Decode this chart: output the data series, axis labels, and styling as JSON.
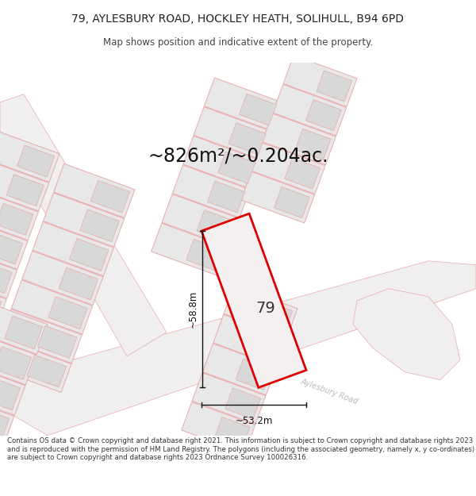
{
  "title_line1": "79, AYLESBURY ROAD, HOCKLEY HEATH, SOLIHULL, B94 6PD",
  "title_line2": "Map shows position and indicative extent of the property.",
  "area_text": "~826m²/~0.204ac.",
  "label_79": "79",
  "dim_width": "~53.2m",
  "dim_height": "~58.8m",
  "footer": "Contains OS data © Crown copyright and database right 2021. This information is subject to Crown copyright and database rights 2023 and is reproduced with the permission of HM Land Registry. The polygons (including the associated geometry, namely x, y co-ordinates) are subject to Crown copyright and database rights 2023 Ordnance Survey 100026316.",
  "bg_color": "#ffffff",
  "map_bg": "#fafafa",
  "property_color": "#dd0000",
  "property_fill": "#f5f0f0",
  "plot_fill": "#e8e8e8",
  "plot_stroke": "#e8aaaa",
  "building_fill": "#d8d8d8",
  "road_stroke": "#e8aaaa",
  "dim_color": "#111111",
  "road_label_color": "#bbbbbb"
}
